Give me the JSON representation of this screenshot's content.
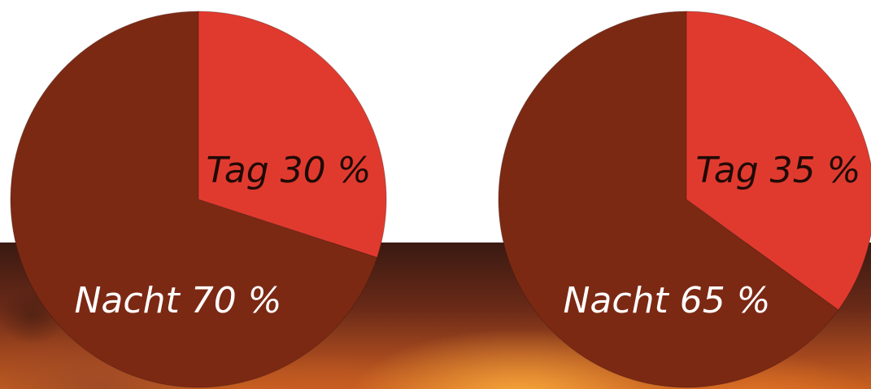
{
  "colors": {
    "tag": "#e03a2f",
    "nacht": "#7c2914"
  },
  "chart_data": [
    {
      "type": "pie",
      "slices": [
        {
          "label": "Tag",
          "value": 30,
          "display": "Tag 30 %"
        },
        {
          "label": "Nacht",
          "value": 70,
          "display": "Nacht 70 %"
        }
      ]
    },
    {
      "type": "pie",
      "slices": [
        {
          "label": "Tag",
          "value": 35,
          "display": "Tag 35 %"
        },
        {
          "label": "Nacht",
          "value": 65,
          "display": "Nacht 65 %"
        }
      ]
    }
  ]
}
